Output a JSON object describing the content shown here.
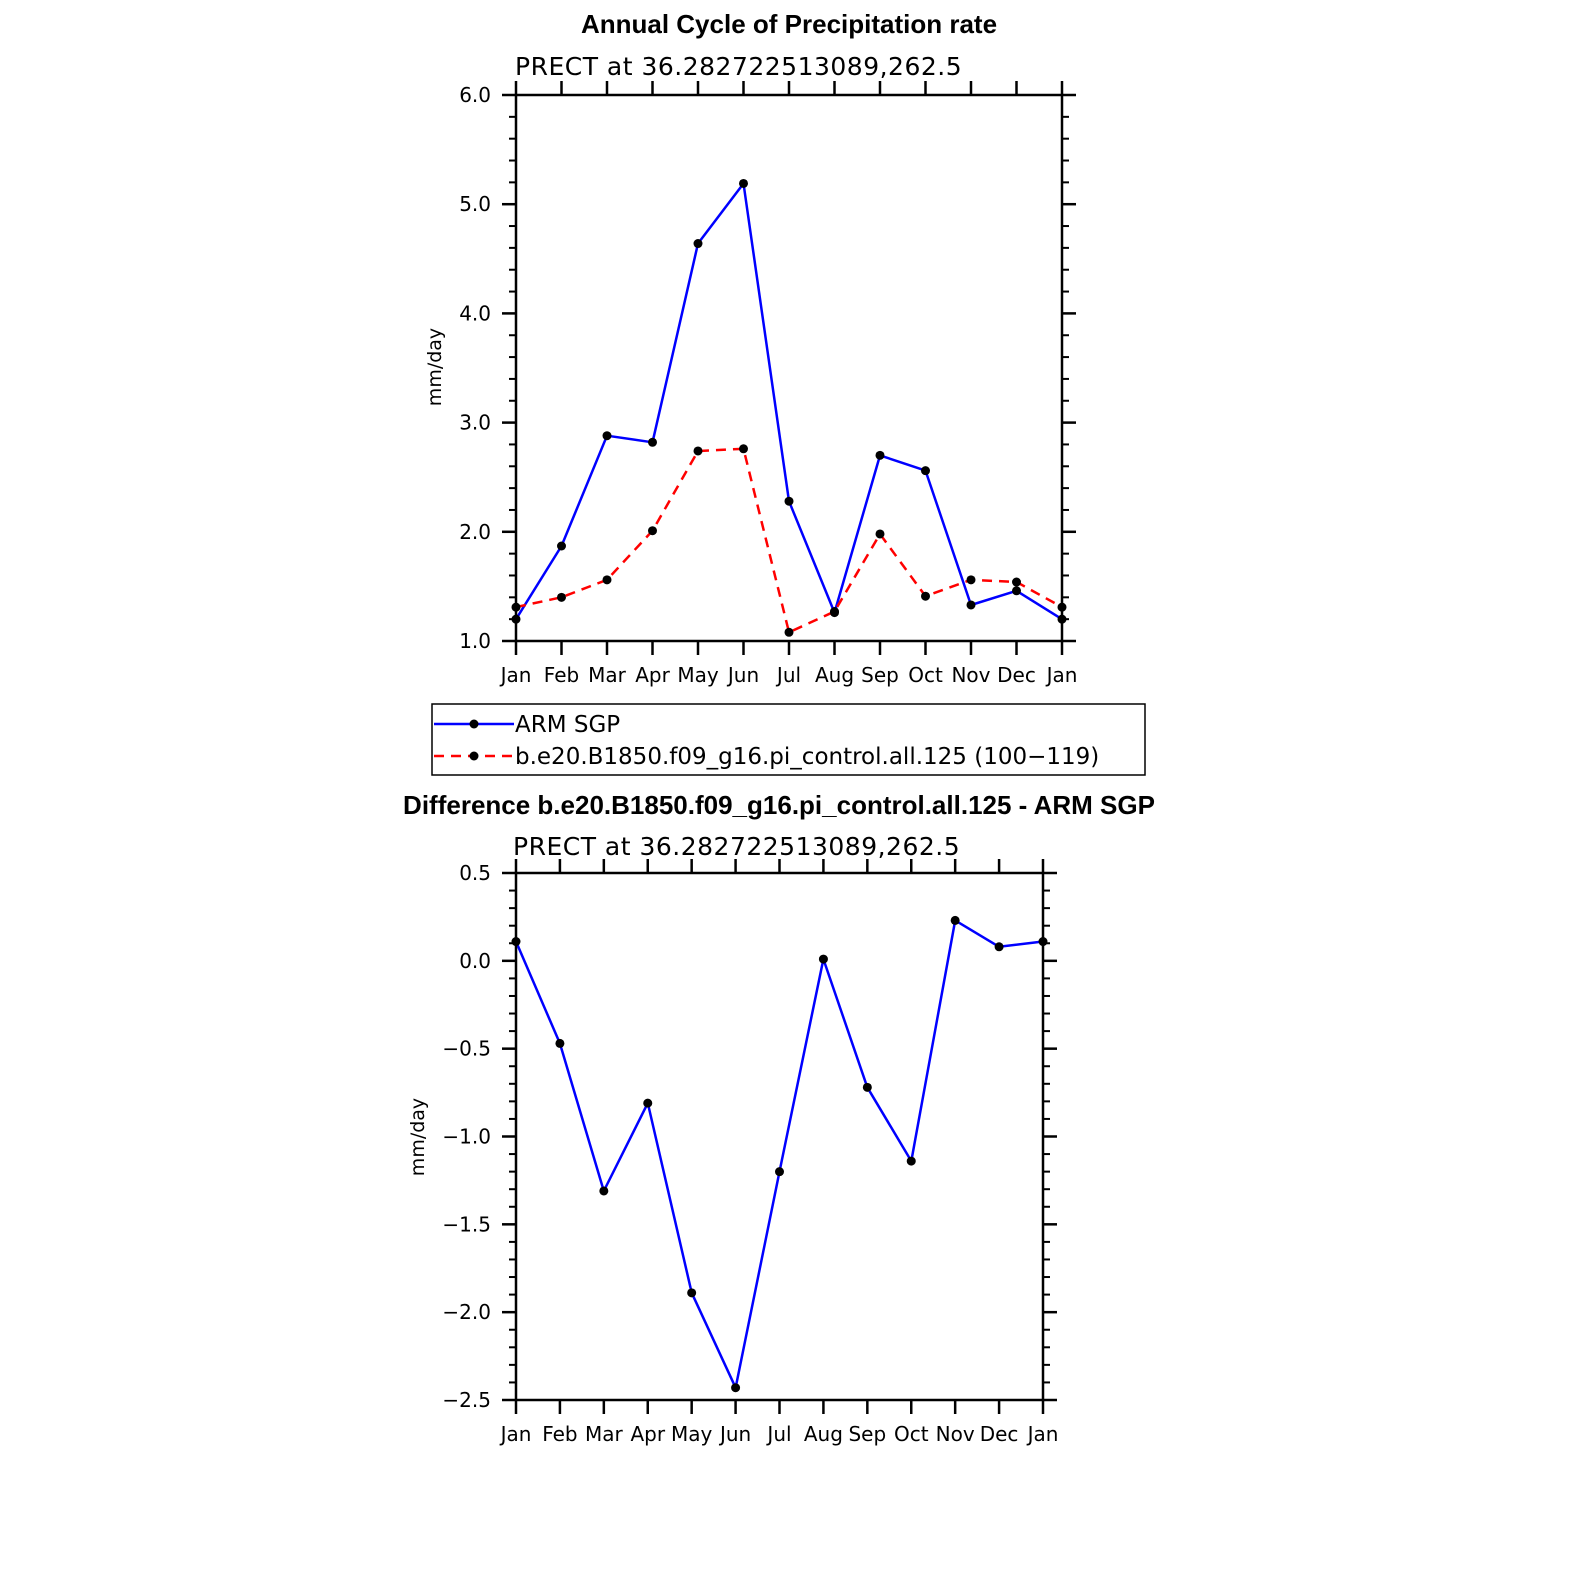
{
  "chart_data": [
    {
      "type": "line",
      "title": "Annual Cycle of Precipitation rate",
      "subtitle": "PRECT at 36.282722513089,262.5",
      "ylabel": "mm/day",
      "xlabel": "",
      "categories": [
        "Jan",
        "Feb",
        "Mar",
        "Apr",
        "May",
        "Jun",
        "Jul",
        "Aug",
        "Sep",
        "Oct",
        "Nov",
        "Dec",
        "Jan"
      ],
      "ylim": [
        1.0,
        6.0
      ],
      "yticks": [
        1.0,
        2.0,
        3.0,
        4.0,
        5.0,
        6.0
      ],
      "ytick_labels": [
        "1.0",
        "2.0",
        "3.0",
        "4.0",
        "5.0",
        "6.0"
      ],
      "grid": false,
      "legend_position": "below",
      "series": [
        {
          "name": "ARM SGP",
          "color": "#0000ff",
          "dash": "solid",
          "values": [
            1.2,
            1.87,
            2.88,
            2.82,
            4.64,
            5.19,
            2.28,
            1.26,
            2.7,
            2.56,
            1.33,
            1.46,
            1.2
          ]
        },
        {
          "name": "b.e20.B1850.f09_g16.pi_control.all.125 (100−119)",
          "color": "#ff0000",
          "dash": "dashed",
          "values": [
            1.31,
            1.4,
            1.56,
            2.01,
            2.74,
            2.76,
            1.08,
            1.27,
            1.98,
            1.41,
            1.56,
            1.54,
            1.31
          ]
        }
      ]
    },
    {
      "type": "line",
      "title": "Difference b.e20.B1850.f09_g16.pi_control.all.125 - ARM SGP",
      "subtitle": "PRECT at 36.282722513089,262.5",
      "ylabel": "mm/day",
      "xlabel": "",
      "categories": [
        "Jan",
        "Feb",
        "Mar",
        "Apr",
        "May",
        "Jun",
        "Jul",
        "Aug",
        "Sep",
        "Oct",
        "Nov",
        "Dec",
        "Jan"
      ],
      "ylim": [
        -2.5,
        0.5
      ],
      "yticks": [
        -2.5,
        -2.0,
        -1.5,
        -1.0,
        -0.5,
        0.0,
        0.5
      ],
      "ytick_labels": [
        "−2.5",
        "−2.0",
        "−1.5",
        "−1.0",
        "−0.5",
        "0.0",
        "0.5"
      ],
      "grid": false,
      "series": [
        {
          "color": "#0000ff",
          "dash": "solid",
          "values": [
            0.11,
            -0.47,
            -1.31,
            -0.81,
            -1.89,
            -2.43,
            -1.2,
            0.01,
            -0.72,
            -1.14,
            0.23,
            0.08,
            0.11
          ]
        }
      ]
    }
  ]
}
